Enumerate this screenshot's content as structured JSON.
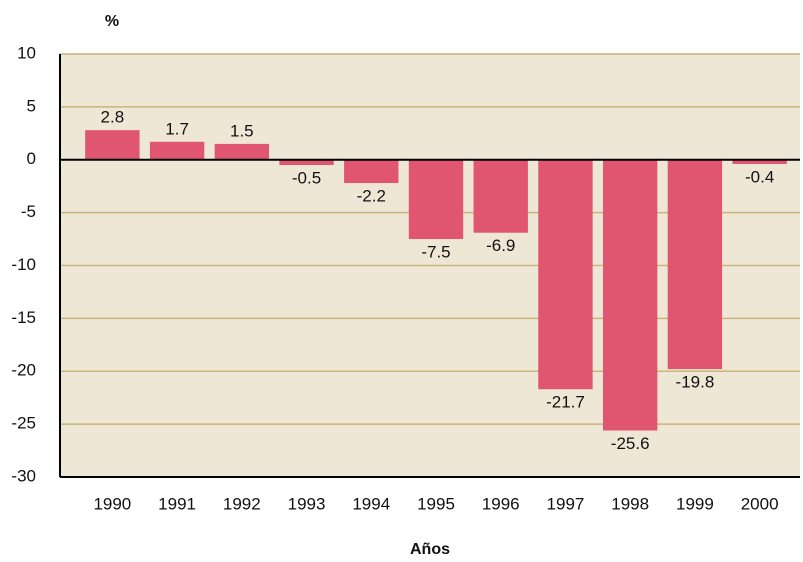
{
  "chart_data": {
    "type": "bar",
    "y_label": "%",
    "x_label": "Años",
    "categories": [
      "1990",
      "1991",
      "1992",
      "1993",
      "1994",
      "1995",
      "1996",
      "1997",
      "1998",
      "1999",
      "2000"
    ],
    "values": [
      2.8,
      1.7,
      1.5,
      -0.5,
      -2.2,
      -7.5,
      -6.9,
      -21.7,
      -25.6,
      -19.8,
      -0.4
    ],
    "color": "#e0556f",
    "ylim": [
      -30,
      10
    ],
    "yticks": [
      -30,
      -25,
      -20,
      -15,
      -10,
      -5,
      0,
      5,
      10
    ],
    "grid": true
  }
}
